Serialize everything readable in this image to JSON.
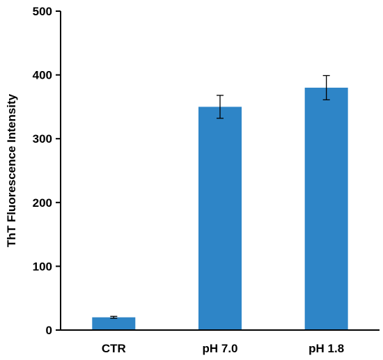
{
  "chart_data": {
    "type": "bar",
    "title": "",
    "xlabel": "",
    "ylabel": "ThT Fluorescence Intensity",
    "categories": [
      "CTR",
      "pH 7.0",
      "pH 1.8"
    ],
    "values": [
      20,
      350,
      380
    ],
    "errors": [
      1.5,
      18,
      19
    ],
    "ylim": [
      0,
      500
    ],
    "yticks": [
      0,
      100,
      200,
      300,
      400,
      500
    ],
    "ytick_labels": [
      "0",
      "100",
      "200",
      "300",
      "400",
      "500"
    ],
    "grid": false,
    "legend": "none",
    "bar_color": "#2e85c7",
    "axis_color": "#000000"
  }
}
